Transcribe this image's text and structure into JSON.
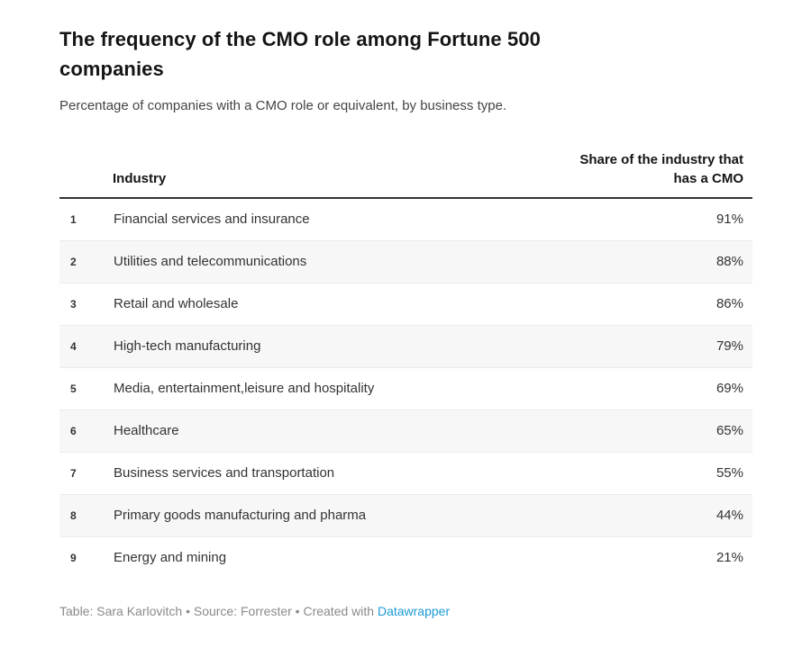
{
  "chart_data": {
    "type": "table",
    "title": "The frequency of the CMO role among Fortune 500 companies",
    "subtitle": "Percentage of companies with a CMO role or equivalent, by business type.",
    "columns": [
      "Industry",
      "Share of the industry that has a CMO"
    ],
    "rows": [
      {
        "n": "1",
        "industry": "Financial services and insurance",
        "share": "91%",
        "share_value": 91
      },
      {
        "n": "2",
        "industry": "Utilities and telecommunications",
        "share": "88%",
        "share_value": 88
      },
      {
        "n": "3",
        "industry": "Retail and wholesale",
        "share": "86%",
        "share_value": 86
      },
      {
        "n": "4",
        "industry": "High-tech manufacturing",
        "share": "79%",
        "share_value": 79
      },
      {
        "n": "5",
        "industry": "Media, entertainment,leisure and hospitality",
        "share": "69%",
        "share_value": 69
      },
      {
        "n": "6",
        "industry": "Healthcare",
        "share": "65%",
        "share_value": 65
      },
      {
        "n": "7",
        "industry": "Business services and transportation",
        "share": "55%",
        "share_value": 55
      },
      {
        "n": "8",
        "industry": "Primary goods manufacturing and pharma",
        "share": "44%",
        "share_value": 44
      },
      {
        "n": "9",
        "industry": "Energy and mining",
        "share": "21%",
        "share_value": 21
      }
    ],
    "layout_hints": {
      "zebra_striping": true,
      "share_column_alignment": "right",
      "header_rule": "2px solid dark"
    }
  },
  "footer": {
    "credit": "Table: Sara Karlovitch • Source: Forrester • Created with",
    "link_label": "Datawrapper"
  },
  "colors": {
    "title_text": "#151515",
    "body_text": "#333333",
    "subtitle_text": "#444444",
    "row_stripe": "#f7f7f7",
    "row_separator": "#ebebeb",
    "header_rule": "#333333",
    "footer_text": "#8a8a8a",
    "link_accent": "#1d9bd7"
  }
}
